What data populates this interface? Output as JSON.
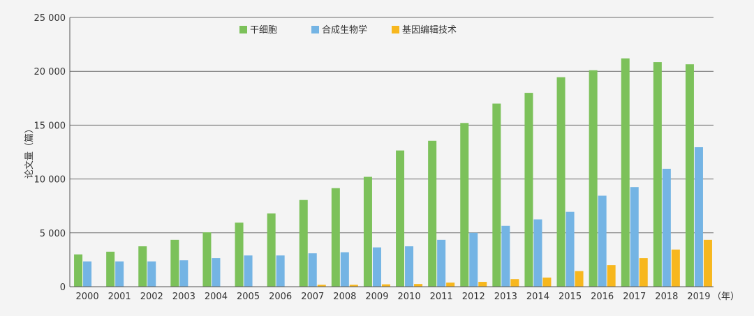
{
  "chart_data": {
    "type": "bar",
    "title": "",
    "ylabel": "论文量（篇）",
    "xlabel": "",
    "x_unit_label": "（年）",
    "ylim": [
      0,
      25000
    ],
    "yticks": [
      0,
      5000,
      10000,
      15000,
      20000,
      25000
    ],
    "ytick_labels": [
      "0",
      "5 000",
      "10 000",
      "15 000",
      "20 000",
      "25 000"
    ],
    "grid": true,
    "legend_position": "top-center",
    "categories": [
      "2000",
      "2001",
      "2002",
      "2003",
      "2004",
      "2005",
      "2006",
      "2007",
      "2008",
      "2009",
      "2010",
      "2011",
      "2012",
      "2013",
      "2014",
      "2015",
      "2016",
      "2017",
      "2018",
      "2019"
    ],
    "series": [
      {
        "name": "干细胞",
        "color": "#7cc15a",
        "values": [
          3000,
          3250,
          3750,
          4350,
          5050,
          5950,
          6800,
          8050,
          9150,
          10200,
          12650,
          13550,
          15200,
          17000,
          18000,
          19450,
          20100,
          21200,
          20850,
          20650
        ]
      },
      {
        "name": "合成生物学",
        "color": "#74b4e4",
        "values": [
          2350,
          2350,
          2350,
          2450,
          2650,
          2900,
          2900,
          3100,
          3200,
          3650,
          3750,
          4350,
          5000,
          5650,
          6250,
          6950,
          8450,
          9250,
          10950,
          12950
        ]
      },
      {
        "name": "基因编辑技术",
        "color": "#f7b71e",
        "values": [
          0,
          0,
          0,
          0,
          0,
          0,
          0,
          180,
          180,
          220,
          250,
          380,
          450,
          700,
          850,
          1450,
          2000,
          2650,
          3450,
          4350
        ]
      }
    ]
  }
}
